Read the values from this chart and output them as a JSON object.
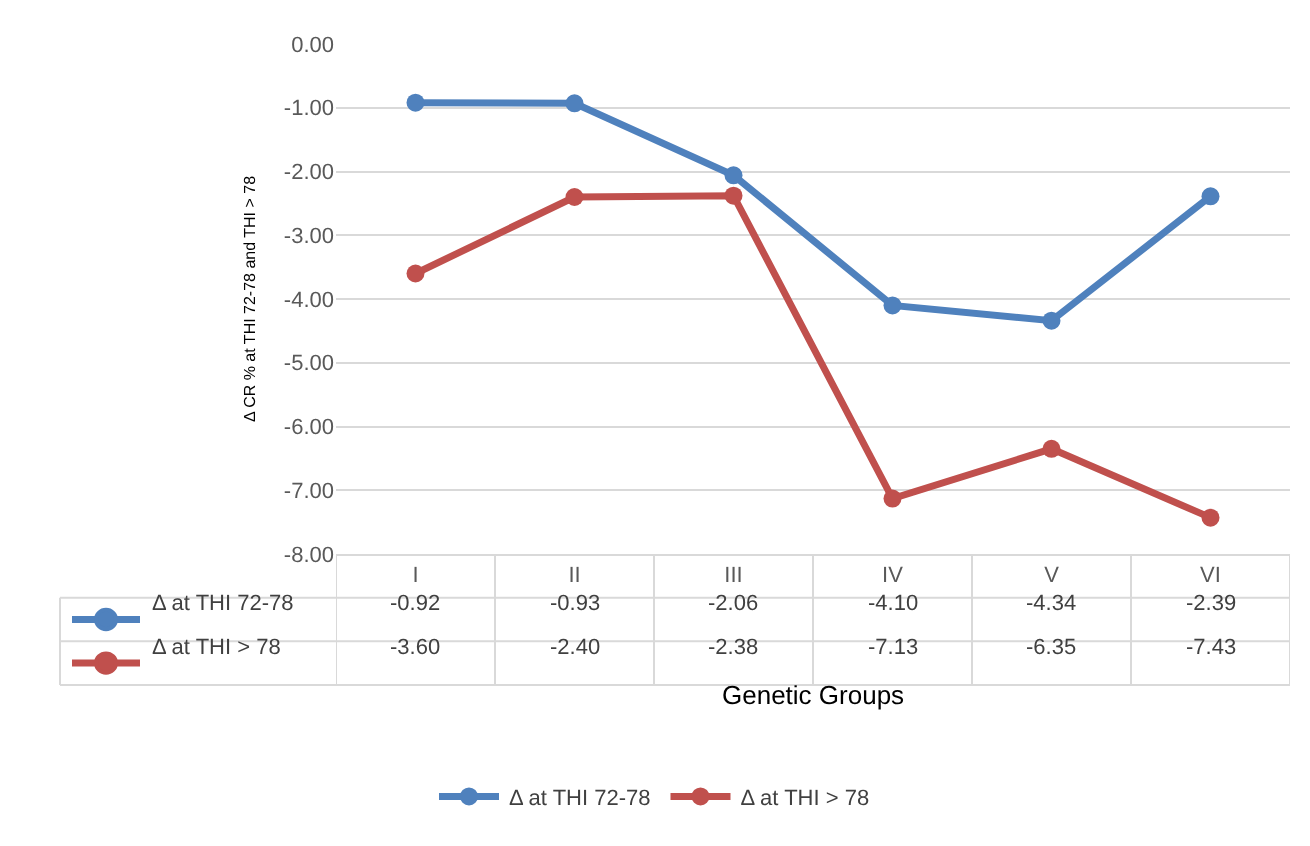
{
  "chart_data": {
    "type": "line",
    "xlabel": "Genetic Groups",
    "ylabel": "Δ CR % at THI 72-78 and THI > 78",
    "categories": [
      "I",
      "II",
      "III",
      "IV",
      "V",
      "VI"
    ],
    "series": [
      {
        "name": "Δ at THI 72-78",
        "color": "#4f81bd",
        "values": [
          -0.92,
          -0.93,
          -2.06,
          -4.1,
          -4.34,
          -2.39
        ],
        "value_labels": [
          "-0.92",
          "-0.93",
          "-2.06",
          "-4.10",
          "-4.34",
          "-2.39"
        ]
      },
      {
        "name": "Δ at THI > 78",
        "color": "#c0504d",
        "values": [
          -3.6,
          -2.4,
          -2.38,
          -7.13,
          -6.35,
          -7.43
        ],
        "value_labels": [
          "-3.60",
          "-2.40",
          "-2.38",
          "-7.13",
          "-6.35",
          "-7.43"
        ]
      }
    ],
    "ylim": [
      -8,
      0
    ],
    "yticks": [
      {
        "value": 0,
        "label": "0.00"
      },
      {
        "value": -1,
        "label": "-1.00"
      },
      {
        "value": -2,
        "label": "-2.00"
      },
      {
        "value": -3,
        "label": "-3.00"
      },
      {
        "value": -4,
        "label": "-4.00"
      },
      {
        "value": -5,
        "label": "-5.00"
      },
      {
        "value": -6,
        "label": "-6.00"
      },
      {
        "value": -7,
        "label": "-7.00"
      },
      {
        "value": -8,
        "label": "-8.00"
      }
    ],
    "grid": "y",
    "legend": "bottom",
    "marker": "circle",
    "line_style": "solid"
  }
}
